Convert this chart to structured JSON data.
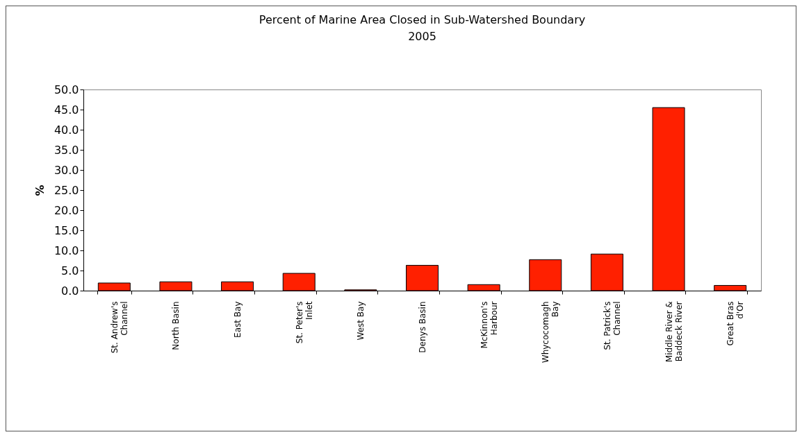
{
  "chart_data": {
    "type": "bar",
    "title": "Percent of Marine Area Closed in Sub-Watershed Boundary",
    "subtitle": "2005",
    "ylabel": "%",
    "categories": [
      "St. Andrew's Channel",
      "North Basin",
      "East Bay",
      "St. Peter's Inlet",
      "West Bay",
      "Denys Basin",
      "McKinnon's Harbour",
      "Whycocomagh Bay",
      "St. Patrick's Channel",
      "Middle River & Baddeck River",
      "Great Bras d'Or"
    ],
    "values": [
      1.9,
      2.2,
      2.2,
      4.3,
      0.2,
      6.3,
      1.5,
      7.7,
      9.1,
      45.5,
      1.3
    ],
    "color": "#ff2000",
    "ylim": [
      0,
      50
    ],
    "yticks": [
      {
        "value": 0,
        "label": "0.0"
      },
      {
        "value": 5,
        "label": "5.0"
      },
      {
        "value": 10,
        "label": "10.0"
      },
      {
        "value": 15,
        "label": "15.0"
      },
      {
        "value": 20,
        "label": "20.0"
      },
      {
        "value": 25,
        "label": "25.0"
      },
      {
        "value": 30,
        "label": "30.0"
      },
      {
        "value": 35,
        "label": "35.0"
      },
      {
        "value": 40,
        "label": "40.0"
      },
      {
        "value": 45,
        "label": "45.0"
      },
      {
        "value": 50,
        "label": "50.0"
      }
    ],
    "grid": false
  }
}
